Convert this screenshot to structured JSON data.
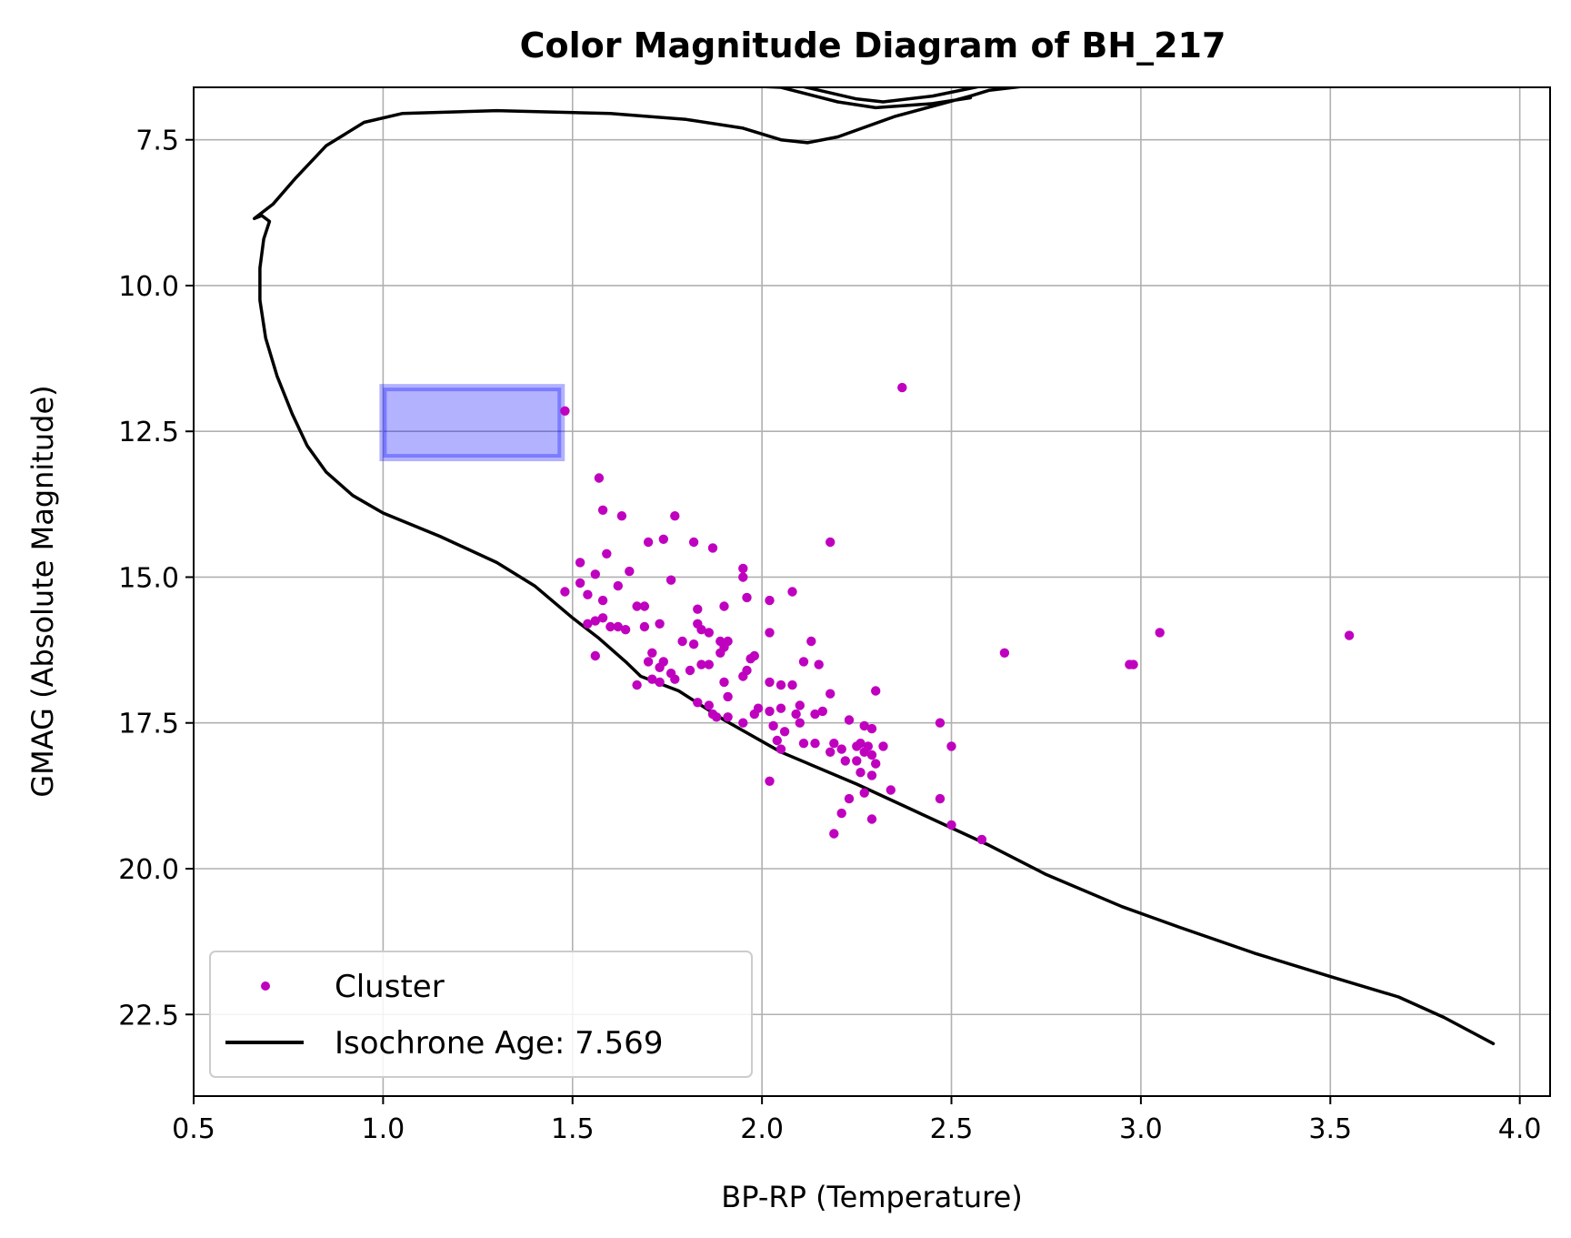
{
  "chart_data": {
    "type": "scatter",
    "title": "Color Magnitude Diagram of BH_217",
    "xlabel": "BP-RP (Temperature)",
    "ylabel": "GMAG (Absolute Magnitude)",
    "xlim": [
      0.5,
      4.08
    ],
    "ylim": [
      6.6,
      23.9
    ],
    "y_inverted": true,
    "xticks": [
      0.5,
      1.0,
      1.5,
      2.0,
      2.5,
      3.0,
      3.5,
      4.0
    ],
    "xtick_labels": [
      "0.5",
      "1.0",
      "1.5",
      "2.0",
      "2.5",
      "3.0",
      "3.5",
      "4.0"
    ],
    "yticks": [
      7.5,
      10.0,
      12.5,
      15.0,
      17.5,
      20.0,
      22.5
    ],
    "ytick_labels": [
      "7.5",
      "10.0",
      "12.5",
      "15.0",
      "17.5",
      "20.0",
      "22.5"
    ],
    "grid": true,
    "legend_position": "lower-left",
    "series": [
      {
        "name": "Cluster",
        "kind": "scatter",
        "color": "#bf00bf",
        "points": [
          [
            2.37,
            11.75
          ],
          [
            1.48,
            12.15
          ],
          [
            1.57,
            13.3
          ],
          [
            1.58,
            13.85
          ],
          [
            1.63,
            13.95
          ],
          [
            1.77,
            13.95
          ],
          [
            1.74,
            14.35
          ],
          [
            1.7,
            14.4
          ],
          [
            1.82,
            14.4
          ],
          [
            1.87,
            14.5
          ],
          [
            2.18,
            14.4
          ],
          [
            1.59,
            14.6
          ],
          [
            1.52,
            14.75
          ],
          [
            1.56,
            14.95
          ],
          [
            1.65,
            14.9
          ],
          [
            1.76,
            15.05
          ],
          [
            1.95,
            14.85
          ],
          [
            1.95,
            15.0
          ],
          [
            1.52,
            15.1
          ],
          [
            1.62,
            15.15
          ],
          [
            1.48,
            15.25
          ],
          [
            1.54,
            15.3
          ],
          [
            1.58,
            15.4
          ],
          [
            1.96,
            15.35
          ],
          [
            2.02,
            15.4
          ],
          [
            2.08,
            15.25
          ],
          [
            1.67,
            15.5
          ],
          [
            1.69,
            15.5
          ],
          [
            1.83,
            15.55
          ],
          [
            1.9,
            15.5
          ],
          [
            1.56,
            15.75
          ],
          [
            1.58,
            15.7
          ],
          [
            1.54,
            15.8
          ],
          [
            1.6,
            15.85
          ],
          [
            1.62,
            15.85
          ],
          [
            1.64,
            15.9
          ],
          [
            1.69,
            15.85
          ],
          [
            1.73,
            15.8
          ],
          [
            1.83,
            15.8
          ],
          [
            1.84,
            15.9
          ],
          [
            1.86,
            15.95
          ],
          [
            2.02,
            15.95
          ],
          [
            1.79,
            16.1
          ],
          [
            1.82,
            16.15
          ],
          [
            1.89,
            16.1
          ],
          [
            1.91,
            16.1
          ],
          [
            1.9,
            16.2
          ],
          [
            1.71,
            16.3
          ],
          [
            2.13,
            16.1
          ],
          [
            1.89,
            16.3
          ],
          [
            1.56,
            16.35
          ],
          [
            1.74,
            16.45
          ],
          [
            1.7,
            16.45
          ],
          [
            1.73,
            16.55
          ],
          [
            1.81,
            16.6
          ],
          [
            1.86,
            16.5
          ],
          [
            1.84,
            16.5
          ],
          [
            1.97,
            16.4
          ],
          [
            1.98,
            16.35
          ],
          [
            1.96,
            16.6
          ],
          [
            2.11,
            16.45
          ],
          [
            2.15,
            16.5
          ],
          [
            1.67,
            16.85
          ],
          [
            1.71,
            16.75
          ],
          [
            1.73,
            16.8
          ],
          [
            1.77,
            16.75
          ],
          [
            1.76,
            16.65
          ],
          [
            1.9,
            16.8
          ],
          [
            1.95,
            16.7
          ],
          [
            2.02,
            16.8
          ],
          [
            2.05,
            16.85
          ],
          [
            2.08,
            16.85
          ],
          [
            1.91,
            17.05
          ],
          [
            2.18,
            17.0
          ],
          [
            2.3,
            16.95
          ],
          [
            1.83,
            17.15
          ],
          [
            1.86,
            17.2
          ],
          [
            1.87,
            17.35
          ],
          [
            1.88,
            17.4
          ],
          [
            1.91,
            17.4
          ],
          [
            1.98,
            17.35
          ],
          [
            1.99,
            17.25
          ],
          [
            2.02,
            17.3
          ],
          [
            2.05,
            17.25
          ],
          [
            2.1,
            17.2
          ],
          [
            2.09,
            17.35
          ],
          [
            2.1,
            17.5
          ],
          [
            2.14,
            17.35
          ],
          [
            2.16,
            17.3
          ],
          [
            1.95,
            17.5
          ],
          [
            2.03,
            17.55
          ],
          [
            2.06,
            17.65
          ],
          [
            2.23,
            17.45
          ],
          [
            2.27,
            17.55
          ],
          [
            2.29,
            17.6
          ],
          [
            2.04,
            17.8
          ],
          [
            2.05,
            17.95
          ],
          [
            2.11,
            17.85
          ],
          [
            2.14,
            17.85
          ],
          [
            2.19,
            17.85
          ],
          [
            2.21,
            17.95
          ],
          [
            2.18,
            18.0
          ],
          [
            2.25,
            17.9
          ],
          [
            2.26,
            17.85
          ],
          [
            2.27,
            18.0
          ],
          [
            2.28,
            17.9
          ],
          [
            2.32,
            17.9
          ],
          [
            2.22,
            18.15
          ],
          [
            2.25,
            18.15
          ],
          [
            2.29,
            18.05
          ],
          [
            2.3,
            18.2
          ],
          [
            2.26,
            18.35
          ],
          [
            2.29,
            18.4
          ],
          [
            2.02,
            18.5
          ],
          [
            2.34,
            18.65
          ],
          [
            2.27,
            18.7
          ],
          [
            2.23,
            18.8
          ],
          [
            2.47,
            18.8
          ],
          [
            2.21,
            19.05
          ],
          [
            2.29,
            19.15
          ],
          [
            2.5,
            19.25
          ],
          [
            2.19,
            19.4
          ],
          [
            2.58,
            19.5
          ],
          [
            2.47,
            17.5
          ],
          [
            2.5,
            17.9
          ],
          [
            2.64,
            16.3
          ],
          [
            2.97,
            16.5
          ],
          [
            2.98,
            16.5
          ],
          [
            3.05,
            15.95
          ],
          [
            3.55,
            16.0
          ]
        ]
      },
      {
        "name": "Isochrone Age: 7.569",
        "kind": "line",
        "color": "#000000",
        "points": [
          [
            3.93,
            23.0
          ],
          [
            3.8,
            22.55
          ],
          [
            3.68,
            22.2
          ],
          [
            3.5,
            21.85
          ],
          [
            3.3,
            21.45
          ],
          [
            3.1,
            21.0
          ],
          [
            2.95,
            20.65
          ],
          [
            2.75,
            20.1
          ],
          [
            2.6,
            19.6
          ],
          [
            2.4,
            19.0
          ],
          [
            2.25,
            18.55
          ],
          [
            2.05,
            18.0
          ],
          [
            1.9,
            17.45
          ],
          [
            1.78,
            16.95
          ],
          [
            1.72,
            16.8
          ],
          [
            1.68,
            16.7
          ],
          [
            1.64,
            16.45
          ],
          [
            1.57,
            16.05
          ],
          [
            1.5,
            15.7
          ],
          [
            1.4,
            15.15
          ],
          [
            1.3,
            14.75
          ],
          [
            1.15,
            14.3
          ],
          [
            1.0,
            13.9
          ],
          [
            0.92,
            13.6
          ],
          [
            0.85,
            13.2
          ],
          [
            0.8,
            12.75
          ],
          [
            0.76,
            12.2
          ],
          [
            0.72,
            11.55
          ],
          [
            0.69,
            10.9
          ],
          [
            0.675,
            10.25
          ],
          [
            0.675,
            9.7
          ],
          [
            0.685,
            9.2
          ],
          [
            0.7,
            8.9
          ],
          [
            0.68,
            8.8
          ],
          [
            0.66,
            8.85
          ],
          [
            0.71,
            8.6
          ],
          [
            0.77,
            8.15
          ],
          [
            0.85,
            7.6
          ],
          [
            0.95,
            7.2
          ],
          [
            1.05,
            7.05
          ],
          [
            1.3,
            7.0
          ],
          [
            1.6,
            7.05
          ],
          [
            1.8,
            7.15
          ],
          [
            1.95,
            7.3
          ],
          [
            2.05,
            7.5
          ],
          [
            2.12,
            7.55
          ],
          [
            2.2,
            7.45
          ],
          [
            2.35,
            7.1
          ],
          [
            2.55,
            6.75
          ],
          [
            2.6,
            6.65
          ],
          [
            3.0,
            6.35
          ],
          [
            3.3,
            6.3
          ],
          [
            3.65,
            6.27
          ],
          [
            3.3,
            6.3
          ],
          [
            3.0,
            6.35
          ],
          [
            2.6,
            6.55
          ],
          [
            2.45,
            6.75
          ],
          [
            2.32,
            6.85
          ],
          [
            2.25,
            6.8
          ],
          [
            2.05,
            6.5
          ],
          [
            1.7,
            6.35
          ],
          [
            1.3,
            6.3
          ],
          [
            1.04,
            6.45
          ],
          [
            1.3,
            6.45
          ],
          [
            1.7,
            6.5
          ],
          [
            2.05,
            6.6
          ],
          [
            2.2,
            6.85
          ],
          [
            2.3,
            6.95
          ],
          [
            2.45,
            6.88
          ],
          [
            2.55,
            6.78
          ]
        ]
      }
    ],
    "highlight_box": {
      "x_range": [
        1.0,
        1.47
      ],
      "y_range": [
        11.75,
        12.95
      ],
      "color": "#0000ff"
    }
  }
}
